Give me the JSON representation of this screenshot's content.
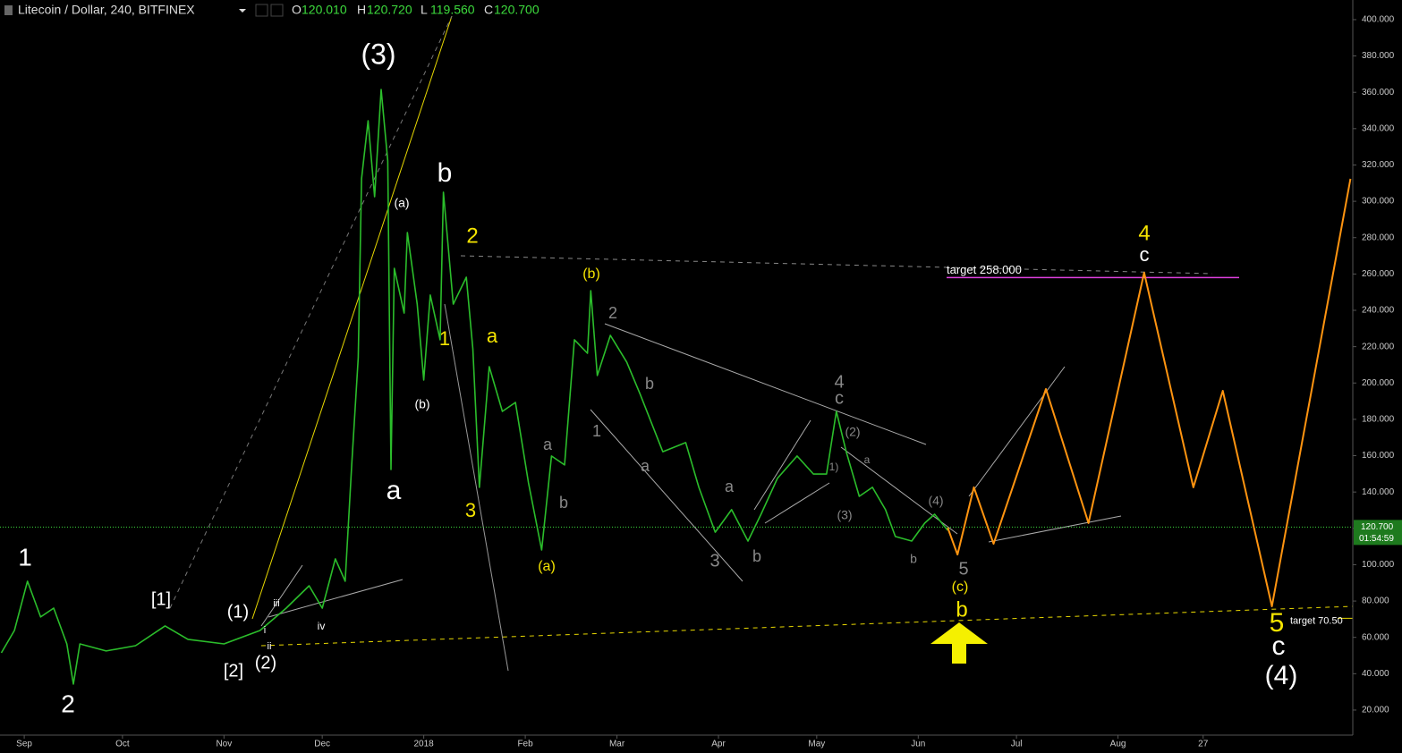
{
  "chart_data": {
    "type": "line",
    "title": "Litecoin / Dollar, 240, BITFINEX",
    "ohlc": [
      {
        "name": "O",
        "value": "120.010"
      },
      {
        "name": "H",
        "value": "120.720"
      },
      {
        "name": "L",
        "value": "119.560"
      },
      {
        "name": "C",
        "value": "120.700"
      }
    ],
    "xlim": [
      -7.4,
      405.7
    ],
    "ylim": [
      6.2,
      410.8
    ],
    "xticks": [
      {
        "value": 0,
        "label": "Sep"
      },
      {
        "value": 30,
        "label": "Oct"
      },
      {
        "value": 61,
        "label": "Nov"
      },
      {
        "value": 91,
        "label": "Dec"
      },
      {
        "value": 122,
        "label": "2018"
      },
      {
        "value": 153,
        "label": "Feb"
      },
      {
        "value": 181,
        "label": "Mar"
      },
      {
        "value": 212,
        "label": "Apr"
      },
      {
        "value": 242,
        "label": "May"
      },
      {
        "value": 273,
        "label": "Jun"
      },
      {
        "value": 303,
        "label": "Jul"
      },
      {
        "value": 334,
        "label": "Aug"
      },
      {
        "value": 360,
        "label": "27"
      }
    ],
    "yticks": [
      {
        "value": 20,
        "label": "20.000"
      },
      {
        "value": 40,
        "label": "40.000"
      },
      {
        "value": 60,
        "label": "60.000"
      },
      {
        "value": 80,
        "label": "80.000"
      },
      {
        "value": 100,
        "label": "100.000"
      },
      {
        "value": 120,
        "label": "120.000"
      },
      {
        "value": 140,
        "label": "140.000"
      },
      {
        "value": 160,
        "label": "160.000"
      },
      {
        "value": 180,
        "label": "180.000"
      },
      {
        "value": 200,
        "label": "200.000"
      },
      {
        "value": 220,
        "label": "220.000"
      },
      {
        "value": 240,
        "label": "240.000"
      },
      {
        "value": 260,
        "label": "260.000"
      },
      {
        "value": 280,
        "label": "280.000"
      },
      {
        "value": 300,
        "label": "300.000"
      },
      {
        "value": 320,
        "label": "320.000"
      },
      {
        "value": 340,
        "label": "340.000"
      },
      {
        "value": 360,
        "label": "360.000"
      },
      {
        "value": 380,
        "label": "380.000"
      },
      {
        "value": 400,
        "label": "400.000"
      }
    ],
    "series": [
      {
        "color": "#2bbd2b",
        "width": 1.6,
        "x": [
          -7,
          -3,
          1,
          5,
          9,
          13,
          15,
          17,
          25,
          34,
          43,
          50,
          61,
          72,
          80,
          87,
          91,
          95,
          98,
          100,
          102,
          103,
          105,
          107,
          109,
          111,
          112,
          113,
          116,
          117,
          120,
          122,
          124,
          127,
          128,
          131,
          135,
          137,
          139,
          142,
          146,
          150,
          154,
          158,
          161,
          165,
          168,
          172,
          173,
          175,
          179,
          184,
          188,
          195,
          202,
          206,
          211,
          216,
          221,
          225,
          230,
          236,
          241,
          245,
          248,
          251,
          255,
          259,
          263,
          266,
          271,
          275,
          278,
          282
        ],
        "values": [
          51.5,
          63.8,
          90.9,
          71.2,
          76.1,
          56.4,
          34.3,
          56.4,
          52.5,
          55.4,
          66.3,
          58.9,
          56.4,
          63.8,
          76.1,
          88.4,
          76.1,
          103.2,
          90.9,
          154.9,
          213.9,
          312.4,
          344.3,
          302.5,
          361.6,
          322.2,
          152.4,
          263.1,
          238.5,
          282.8,
          243.4,
          201.6,
          248.4,
          223.8,
          305.0,
          243.4,
          258.2,
          218.8,
          142.6,
          209.0,
          184.4,
          189.3,
          145.0,
          108.1,
          159.8,
          154.9,
          223.8,
          216.4,
          250.8,
          204.1,
          226.2,
          211.5,
          194.2,
          162.2,
          167.2,
          142.6,
          117.9,
          130.3,
          113.0,
          127.8,
          147.5,
          159.8,
          149.9,
          149.9,
          184.4,
          162.2,
          137.6,
          142.6,
          130.3,
          115.5,
          113.0,
          122.9,
          127.8,
          118.9
        ]
      },
      {
        "color": "#ff9410",
        "width": 2,
        "x": [
          282,
          285,
          290,
          296,
          312,
          325,
          342,
          357,
          366,
          381,
          405
        ],
        "values": [
          120.4,
          105.6,
          142.6,
          111.5,
          196.7,
          122.9,
          260.7,
          142.6,
          195.7,
          77.1,
          312.4
        ]
      }
    ],
    "last_price": {
      "value": 120.7,
      "label": "120.700"
    },
    "countdown": "01:54:59",
    "targets": [
      {
        "value": 258,
        "label": "target 258.000",
        "color": "#e040e0"
      },
      {
        "value": 70.5,
        "label": "target 70.50",
        "color": "#e8d800"
      }
    ],
    "annotations": [
      {
        "text": "(3)",
        "color": "#ffffff"
      },
      {
        "text": "b",
        "color": "#ffffff"
      },
      {
        "text": "(a)",
        "color": "#ffffff"
      },
      {
        "text": "(b)",
        "color": "#ffffff"
      },
      {
        "text": "a",
        "color": "#ffffff"
      },
      {
        "text": "2",
        "color": "#f5e400"
      },
      {
        "text": "1",
        "color": "#f5e400"
      },
      {
        "text": "a",
        "color": "#f5e400"
      },
      {
        "text": "3",
        "color": "#f5e400"
      },
      {
        "text": "(b)",
        "color": "#f5e400"
      },
      {
        "text": "(a)",
        "color": "#f5e400"
      },
      {
        "text": "2",
        "color": "#888888"
      },
      {
        "text": "1",
        "color": "#888888"
      },
      {
        "text": "b",
        "color": "#888888"
      },
      {
        "text": "a",
        "color": "#888888"
      },
      {
        "text": "b",
        "color": "#888888"
      },
      {
        "text": "a",
        "color": "#888888"
      },
      {
        "text": "a",
        "color": "#888888"
      },
      {
        "text": "3",
        "color": "#888888"
      },
      {
        "text": "b",
        "color": "#888888"
      },
      {
        "text": "4",
        "color": "#888888"
      },
      {
        "text": "c",
        "color": "#888888"
      },
      {
        "text": "(2)",
        "color": "#888888"
      },
      {
        "text": "1)",
        "color": "#888888"
      },
      {
        "text": "a",
        "color": "#888888"
      },
      {
        "text": "(3)",
        "color": "#888888"
      },
      {
        "text": "(4)",
        "color": "#888888"
      },
      {
        "text": "b",
        "color": "#888888"
      },
      {
        "text": "5",
        "color": "#888888"
      },
      {
        "text": "(c)",
        "color": "#f5e400"
      },
      {
        "text": "b",
        "color": "#f5e400"
      },
      {
        "text": "1",
        "color": "#ffffff"
      },
      {
        "text": "2",
        "color": "#ffffff"
      },
      {
        "text": "[1]",
        "color": "#ffffff"
      },
      {
        "text": "[2]",
        "color": "#ffffff"
      },
      {
        "text": "(1)",
        "color": "#ffffff"
      },
      {
        "text": "(2)",
        "color": "#ffffff"
      },
      {
        "text": "i",
        "color": "#ffffff"
      },
      {
        "text": "ii",
        "color": "#ffffff"
      },
      {
        "text": "iii",
        "color": "#ffffff"
      },
      {
        "text": "iv",
        "color": "#ffffff"
      },
      {
        "text": "4",
        "color": "#f5e400"
      },
      {
        "text": "c",
        "color": "#ffffff"
      },
      {
        "text": "5",
        "color": "#f5e400"
      },
      {
        "text": "c",
        "color": "#ffffff"
      },
      {
        "text": "(4)",
        "color": "#ffffff"
      }
    ]
  }
}
